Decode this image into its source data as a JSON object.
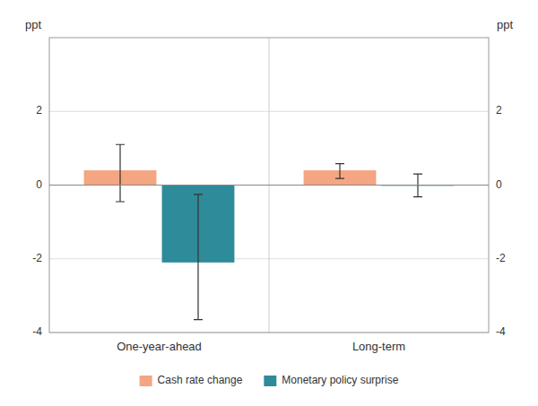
{
  "chart_data": {
    "type": "bar",
    "categories": [
      "One-year-ahead",
      "Long-term"
    ],
    "series": [
      {
        "name": "Cash rate change",
        "color": "#F4A582",
        "values": [
          0.4,
          0.4
        ],
        "error_lower": [
          -0.45,
          0.18
        ],
        "error_upper": [
          1.1,
          0.58
        ]
      },
      {
        "name": "Monetary policy surprise",
        "color": "#2E8B9A",
        "values": [
          -2.1,
          -0.02
        ],
        "error_lower": [
          -3.65,
          -0.32
        ],
        "error_upper": [
          -0.25,
          0.3
        ]
      }
    ],
    "ylim": [
      -4,
      4
    ],
    "yticks": [
      -4,
      -2,
      0,
      2
    ],
    "y2lim": [
      -4,
      4
    ],
    "y2ticks": [
      -4,
      -2,
      0,
      2
    ],
    "ylabel": "ppt",
    "y2label": "ppt",
    "grid": true,
    "legend": "bottom"
  }
}
